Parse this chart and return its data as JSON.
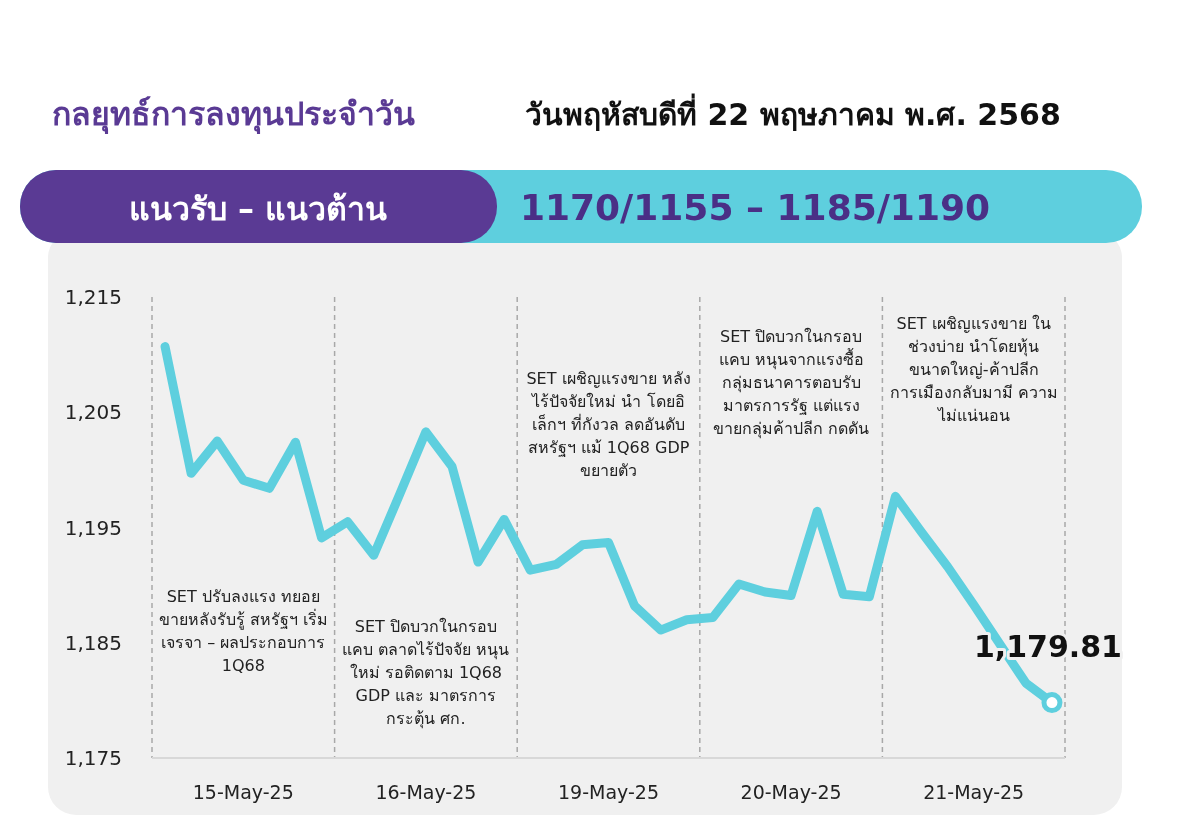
{
  "chart_data": {
    "type": "line",
    "title": "กลยุทธ์การลงทุนประจำวัน",
    "subtitle": "วันพฤหัสบดีที่ 22 พฤษภาคม พ.ศ. 2568",
    "annotations": [
      "แนวรับ – แนวต้าน",
      "1170/1155 – 1185/1190",
      "SET ปรับลงแรง ทยอยขายหลังรับรู้ สหรัฐฯ เริ่มเจรจา – ผลประกอบการ 1Q68",
      "SET ปิดบวกในกรอบ แคบ ตลาดไร้ปัจจัย หนุนใหม่ รอติดตาม 1Q68 GDP และ มาตรการกระตุ้น ศก.",
      "SET เผชิญแรงขาย หลังไร้ปัจจัยใหม่ นำ โดยอิเล็กฯ ที่กังวล ลดอันดับ สหรัฐฯ แม้ 1Q68 GDP ขยายตัว",
      "SET ปิดบวกในกรอบ แคบ หนุนจากแรงซื้อ กลุ่มธนาคารตอบรับ มาตรการรัฐ แต่แรง ขายกลุ่มค้าปลีก กดดัน",
      "SET เผชิญแรงขาย ในช่วงบ่าย นำโดยหุ้น ขนาดใหญ่-ค้าปลีก การเมืองกลับมามี ความไม่แน่นอน"
    ],
    "categories": [
      null,
      null,
      null,
      "15-May-25",
      null,
      null,
      null,
      null,
      null,
      null,
      "16-May-25",
      null,
      null,
      null,
      null,
      null,
      null,
      "19-May-25",
      null,
      null,
      null,
      null,
      null,
      null,
      "20-May-25",
      null,
      null,
      null,
      null,
      null,
      null,
      "21-May-25",
      null,
      null,
      null
    ],
    "ylim": [
      1175,
      1215
    ],
    "yticks": [
      {
        "value": 1175,
        "label": "1,175"
      },
      {
        "value": 1185,
        "label": "1,185"
      },
      {
        "value": 1195,
        "label": "1,195"
      },
      {
        "value": 1205,
        "label": "1,205"
      },
      {
        "value": 1215,
        "label": "1,215"
      }
    ],
    "grid": false,
    "series": [
      {
        "color": "#5ecfde",
        "values": [
          1210.7,
          1199.7,
          1202.5,
          1199.1,
          1198.4,
          1202.4,
          1194.1,
          1195.5,
          1192.6,
          1197.9,
          1203.3,
          1200.3,
          1192.0,
          1195.7,
          1191.3,
          1191.8,
          1193.5,
          1193.7,
          1188.2,
          1186.1,
          1187.0,
          1187.2,
          1190.1,
          1189.4,
          1189.1,
          1196.4,
          1189.2,
          1189.0,
          1197.7,
          1194.6,
          1191.6,
          1188.3,
          1184.9,
          1181.5,
          1179.81
        ],
        "value_labels": [
          null,
          null,
          null,
          null,
          null,
          null,
          null,
          null,
          null,
          null,
          null,
          null,
          null,
          null,
          null,
          null,
          null,
          null,
          null,
          null,
          null,
          null,
          null,
          null,
          null,
          null,
          null,
          null,
          null,
          null,
          null,
          null,
          null,
          null,
          "1,179.81"
        ]
      }
    ]
  }
}
